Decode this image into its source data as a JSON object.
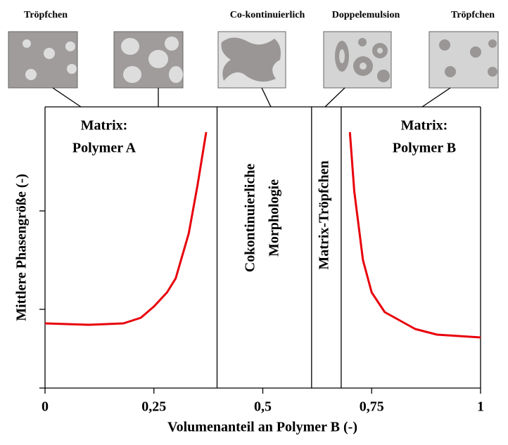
{
  "chart_data": {
    "type": "line",
    "title_labels": [
      "Tröpfchen",
      "Co-kontinuierlich",
      "Doppelemulsion",
      "Tröpfchen"
    ],
    "x_label": "Volumenanteil an Polymer B (-)",
    "y_label": "Mittlere Phasengröße (-)",
    "regions": [
      {
        "lines": [
          "Matrix:",
          "Polymer A"
        ]
      },
      {
        "lines": [
          "Cokontinuierliche",
          "Morphologie"
        ]
      },
      {
        "lines": [
          "Matrix-Tröpfchen"
        ]
      },
      {
        "lines": [
          "Matrix:",
          "Polymer B"
        ]
      }
    ],
    "boundaries": [
      0.395,
      0.612,
      0.68
    ],
    "xlim": [
      0,
      1
    ],
    "ylim": [
      0,
      1
    ],
    "xticks": [
      {
        "value": 0,
        "label": "0"
      },
      {
        "value": 0.25,
        "label": "0,25"
      },
      {
        "value": 0.5,
        "label": "0,5"
      },
      {
        "value": 0.75,
        "label": "0,75"
      },
      {
        "value": 1,
        "label": "1"
      }
    ],
    "yticks": [
      0.28,
      0.63
    ],
    "ytick_labels": false,
    "series": [
      {
        "color": "#e8000b",
        "x": [
          0,
          0.1,
          0.18,
          0.22,
          0.25,
          0.28,
          0.3,
          0.33,
          0.35,
          0.37
        ],
        "values": [
          0.23,
          0.225,
          0.23,
          0.25,
          0.29,
          0.34,
          0.39,
          0.55,
          0.72,
          0.91
        ]
      },
      {
        "color": "#e8000b",
        "x": [
          0.7,
          0.71,
          0.73,
          0.75,
          0.78,
          0.85,
          0.9,
          1
        ],
        "values": [
          0.91,
          0.7,
          0.455,
          0.34,
          0.27,
          0.21,
          0.19,
          0.18
        ]
      }
    ]
  }
}
